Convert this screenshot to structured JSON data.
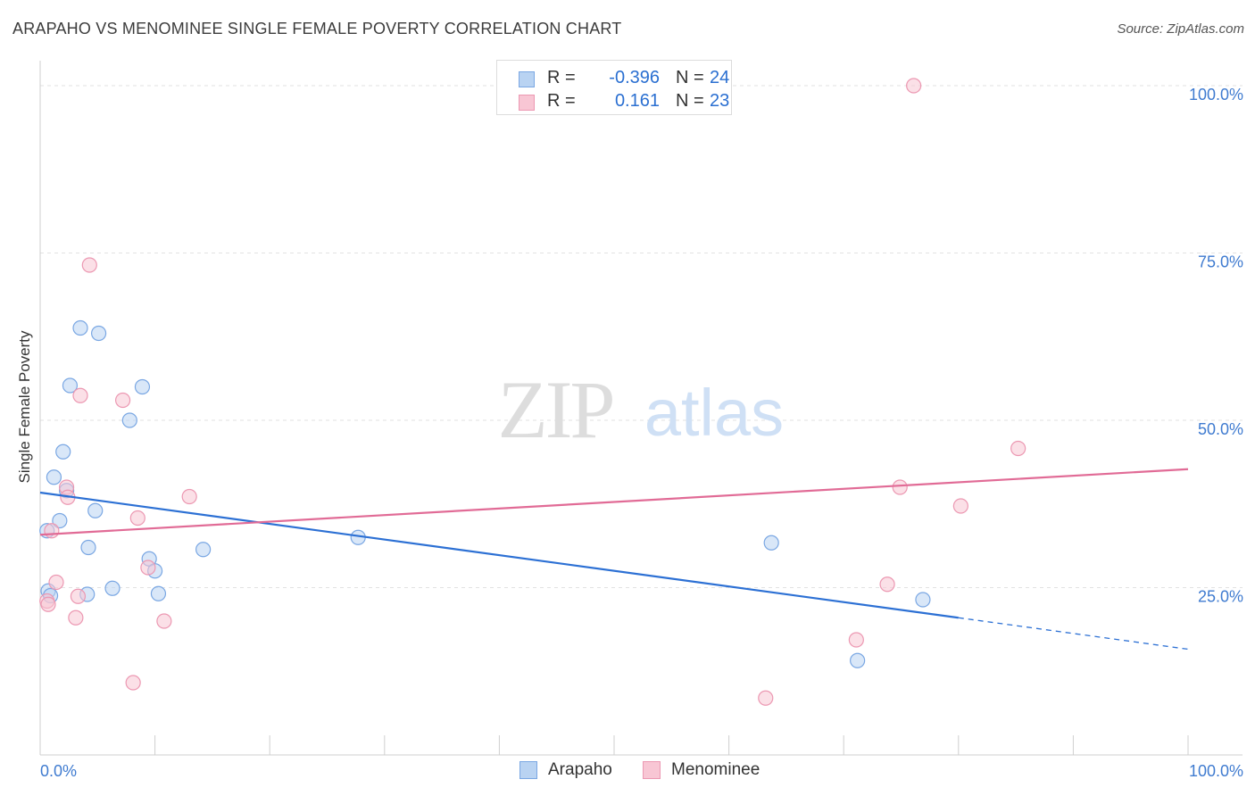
{
  "header": {
    "title": "ARAPAHO VS MENOMINEE SINGLE FEMALE POVERTY CORRELATION CHART",
    "source": "Source: ZipAtlas.com"
  },
  "watermark": {
    "zip": "ZIP",
    "atlas": "atlas"
  },
  "legend": {
    "r_label": "R =",
    "n_label": "N =",
    "rows": [
      {
        "r": "-0.396",
        "n": "24"
      },
      {
        "r": "0.161",
        "n": "23"
      }
    ]
  },
  "colors": {
    "arapaho_fill": "#b9d3f2",
    "arapaho_stroke": "#7aa7e3",
    "arapaho_line": "#2c70d4",
    "menominee_fill": "#f8c6d4",
    "menominee_stroke": "#ec98b2",
    "menominee_line": "#e16b96",
    "tick_text": "#3f7bd0",
    "grid": "#e2e2e2"
  },
  "chart_data": {
    "type": "scatter",
    "title": "ARAPAHO VS MENOMINEE SINGLE FEMALE POVERTY CORRELATION CHART",
    "xlabel": "",
    "ylabel": "Single Female Poverty",
    "xlim": [
      0,
      100
    ],
    "ylim": [
      0,
      102
    ],
    "x_tick_labels": [
      "0.0%",
      "100.0%"
    ],
    "y_ticks": [
      25,
      50,
      75,
      100
    ],
    "y_tick_labels": [
      "25.0%",
      "50.0%",
      "75.0%",
      "100.0%"
    ],
    "grid": true,
    "legend_position": "top-center",
    "series": [
      {
        "name": "Arapaho",
        "color": "#7aa7e3",
        "points": [
          [
            0.6,
            33.5
          ],
          [
            0.7,
            24.5
          ],
          [
            0.9,
            23.8
          ],
          [
            1.2,
            41.5
          ],
          [
            1.7,
            35.0
          ],
          [
            2.0,
            45.3
          ],
          [
            2.3,
            39.5
          ],
          [
            2.6,
            55.2
          ],
          [
            3.5,
            63.8
          ],
          [
            4.1,
            24.0
          ],
          [
            4.2,
            31.0
          ],
          [
            4.8,
            36.5
          ],
          [
            5.1,
            63.0
          ],
          [
            6.3,
            24.9
          ],
          [
            7.8,
            50.0
          ],
          [
            8.9,
            55.0
          ],
          [
            9.5,
            29.3
          ],
          [
            10.0,
            27.5
          ],
          [
            10.3,
            24.1
          ],
          [
            14.2,
            30.7
          ],
          [
            27.7,
            32.5
          ],
          [
            63.7,
            31.7
          ],
          [
            71.2,
            14.1
          ],
          [
            76.9,
            23.2
          ]
        ],
        "trend": {
          "x0": 0,
          "y0": 39.2,
          "x1": 80,
          "y1": 20.5,
          "dashed_to_x": 100,
          "dashed_to_y": 15.8
        }
      },
      {
        "name": "Menominee",
        "color": "#ec98b2",
        "points": [
          [
            0.6,
            23.0
          ],
          [
            0.7,
            22.5
          ],
          [
            1.0,
            33.5
          ],
          [
            1.4,
            25.8
          ],
          [
            2.3,
            40.0
          ],
          [
            2.4,
            38.5
          ],
          [
            3.1,
            20.5
          ],
          [
            3.3,
            23.7
          ],
          [
            3.5,
            53.7
          ],
          [
            4.3,
            73.2
          ],
          [
            7.2,
            53.0
          ],
          [
            8.1,
            10.8
          ],
          [
            8.5,
            35.4
          ],
          [
            9.4,
            28.0
          ],
          [
            10.8,
            20.0
          ],
          [
            13.0,
            38.6
          ],
          [
            63.2,
            8.5
          ],
          [
            71.1,
            17.2
          ],
          [
            73.8,
            25.5
          ],
          [
            74.9,
            40.0
          ],
          [
            76.1,
            100.0
          ],
          [
            80.2,
            37.2
          ],
          [
            85.2,
            45.8
          ]
        ],
        "trend": {
          "x0": 0,
          "y0": 32.9,
          "x1": 100,
          "y1": 42.7
        }
      }
    ]
  },
  "bottom_legend": [
    "Arapaho",
    "Menominee"
  ]
}
